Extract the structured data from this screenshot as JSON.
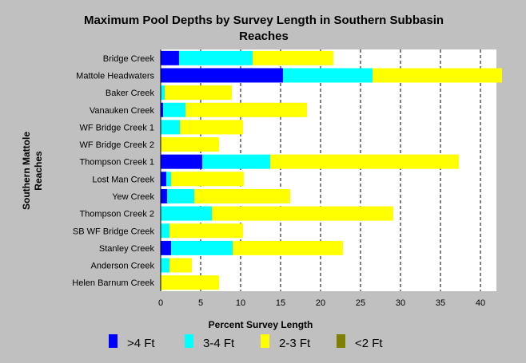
{
  "chart_data": {
    "type": "bar",
    "orientation": "horizontal",
    "stacked": true,
    "title": "Maximum Pool Depths by Survey Length in Southern Subbasin Reaches",
    "title_lines": [
      "Maximum Pool Depths by Survey Length in Southern Subbasin",
      "Reaches"
    ],
    "xlabel": "Percent Survey Length",
    "ylabel": "Southern Mattole Reaches",
    "ylabel_lines": [
      "Southern Mattole",
      "Reaches"
    ],
    "xlim": [
      0,
      42
    ],
    "xticks": [
      0,
      5,
      10,
      15,
      20,
      25,
      30,
      35,
      40
    ],
    "grid": "vertical dashed",
    "legend_position": "bottom",
    "categories": [
      "Bridge Creek",
      "Mattole Headwaters",
      "Baker Creek",
      "Vanauken Creek",
      "WF Bridge Creek 1",
      "WF Bridge Creek 2",
      "Thompson Creek 1",
      "Lost Man Creek",
      "Yew Creek",
      "Thompson Creek 2",
      "SB WF Bridge Creek",
      "Stanley Creek",
      "Anderson Creek",
      "Helen Barnum Creek"
    ],
    "series": [
      {
        "name": ">4 Ft",
        "color": "#0000ff",
        "values": [
          2.3,
          15.3,
          0,
          0.3,
          0,
          0,
          5.2,
          0.7,
          0.8,
          0,
          0,
          1.3,
          0,
          0
        ]
      },
      {
        "name": "3-4 Ft",
        "color": "#00ffff",
        "values": [
          9.2,
          11.2,
          0.5,
          2.8,
          2.4,
          0,
          8.5,
          0.6,
          3.4,
          6.4,
          1.1,
          7.7,
          1.1,
          0
        ]
      },
      {
        "name": "2-3 Ft",
        "color": "#ffff00",
        "values": [
          10.1,
          16.2,
          8.4,
          15.2,
          7.9,
          7.3,
          23.6,
          9.1,
          12.0,
          22.7,
          9.2,
          13.8,
          2.8,
          7.3
        ]
      },
      {
        "name": "<2 Ft",
        "color": "#808000",
        "values": [
          0,
          0,
          0,
          0,
          0,
          0,
          0,
          0,
          0,
          0,
          0,
          0,
          0,
          0
        ]
      }
    ]
  }
}
